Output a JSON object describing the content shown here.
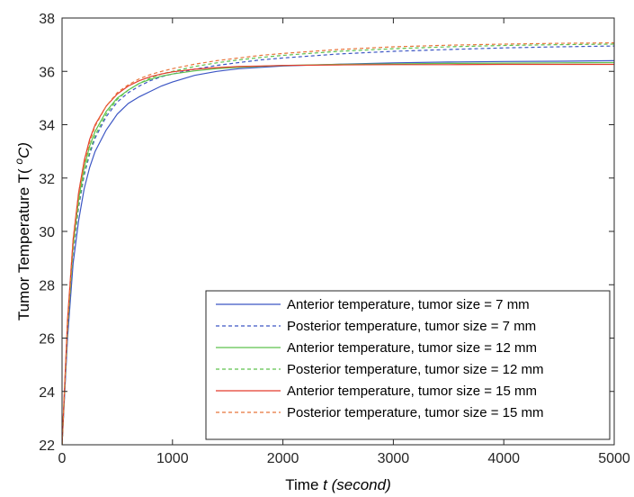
{
  "chart_data": {
    "type": "line",
    "title": "",
    "xlabel": "Time ",
    "xlabel_italic": "t (second)",
    "ylabel": "Tumor Temperature T( ",
    "ylabel_sup": "o",
    "ylabel_unit": "C)",
    "xlim": [
      0,
      5000
    ],
    "ylim": [
      22,
      38
    ],
    "xticks": [
      0,
      1000,
      2000,
      3000,
      4000,
      5000
    ],
    "yticks": [
      22,
      24,
      26,
      28,
      30,
      32,
      34,
      36,
      38
    ],
    "grid": false,
    "legend_position": "bottom-right",
    "x": [
      0,
      50,
      100,
      150,
      200,
      250,
      300,
      400,
      500,
      600,
      700,
      800,
      900,
      1000,
      1200,
      1400,
      1600,
      1800,
      2000,
      2500,
      3000,
      3500,
      4000,
      4500,
      5000
    ],
    "series": [
      {
        "name": "Anterior temperature, tumor size = 7 mm",
        "color": "#3c56c4",
        "dash": "solid",
        "values": [
          22.0,
          26.0,
          28.8,
          30.4,
          31.6,
          32.4,
          33.0,
          33.8,
          34.4,
          34.8,
          35.05,
          35.25,
          35.45,
          35.6,
          35.85,
          36.0,
          36.1,
          36.15,
          36.2,
          36.27,
          36.32,
          36.35,
          36.37,
          36.38,
          36.4
        ]
      },
      {
        "name": "Posterior temperature, tumor size = 7 mm",
        "color": "#3c56c4",
        "dash": "dashed",
        "values": [
          22.0,
          26.2,
          29.2,
          30.9,
          32.1,
          32.9,
          33.5,
          34.3,
          34.85,
          35.2,
          35.45,
          35.65,
          35.8,
          35.9,
          36.08,
          36.22,
          36.33,
          36.43,
          36.5,
          36.65,
          36.75,
          36.82,
          36.88,
          36.92,
          36.95
        ]
      },
      {
        "name": "Anterior temperature, tumor size = 12 mm",
        "color": "#5ec24e",
        "dash": "solid",
        "values": [
          22.0,
          26.5,
          29.5,
          31.2,
          32.4,
          33.2,
          33.75,
          34.5,
          35.0,
          35.3,
          35.55,
          35.7,
          35.82,
          35.9,
          36.02,
          36.1,
          36.15,
          36.19,
          36.22,
          36.26,
          36.28,
          36.3,
          36.31,
          36.32,
          36.33
        ]
      },
      {
        "name": "Posterior temperature, tumor size = 12 mm",
        "color": "#5ec24e",
        "dash": "dashed",
        "values": [
          22.0,
          26.3,
          29.3,
          31.0,
          32.2,
          33.0,
          33.6,
          34.4,
          34.95,
          35.3,
          35.55,
          35.75,
          35.9,
          36.0,
          36.18,
          36.32,
          36.43,
          36.52,
          36.6,
          36.75,
          36.85,
          36.92,
          36.97,
          37.0,
          37.02
        ]
      },
      {
        "name": "Anterior temperature, tumor size = 15 mm",
        "color": "#e33b2c",
        "dash": "solid",
        "values": [
          22.0,
          26.7,
          29.7,
          31.45,
          32.65,
          33.45,
          34.0,
          34.7,
          35.15,
          35.45,
          35.65,
          35.8,
          35.9,
          35.98,
          36.08,
          36.14,
          36.18,
          36.2,
          36.22,
          36.24,
          36.25,
          36.25,
          36.26,
          36.26,
          36.26
        ]
      },
      {
        "name": "Posterior temperature, tumor size = 15 mm",
        "color": "#e8743a",
        "dash": "dashed",
        "values": [
          22.0,
          26.5,
          29.6,
          31.35,
          32.55,
          33.35,
          33.95,
          34.7,
          35.2,
          35.5,
          35.72,
          35.88,
          36.0,
          36.1,
          36.27,
          36.4,
          36.5,
          36.6,
          36.67,
          36.82,
          36.92,
          36.98,
          37.02,
          37.05,
          37.07
        ]
      }
    ]
  }
}
